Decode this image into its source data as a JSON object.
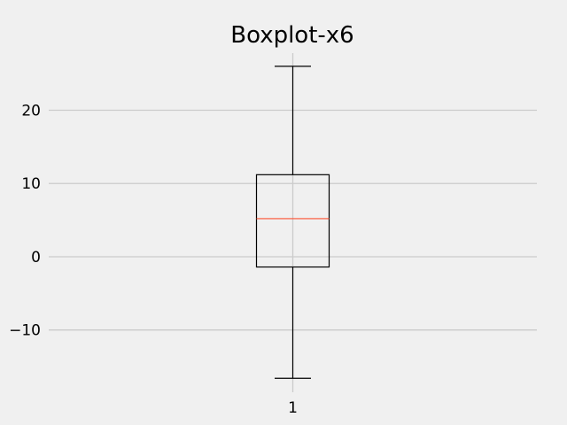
{
  "chart_data": {
    "type": "boxplot",
    "title": "Boxplot-x6",
    "xlabel": "",
    "ylabel": "",
    "categories": [
      "1"
    ],
    "yticks": [
      -10,
      0,
      10,
      20
    ],
    "ytick_labels": [
      "−10",
      "0",
      "10",
      "20"
    ],
    "ylim": [
      -18.5,
      27.8
    ],
    "grid": true,
    "boxes": [
      {
        "label": "1",
        "whisker_low": -16.6,
        "q1": -1.4,
        "median": 5.2,
        "q3": 11.2,
        "whisker_high": 26.0
      }
    ],
    "colors": {
      "background": "#f0f0f0",
      "grid": "#cbcbcb",
      "box": "#000000",
      "median": "#fc4f30"
    }
  }
}
